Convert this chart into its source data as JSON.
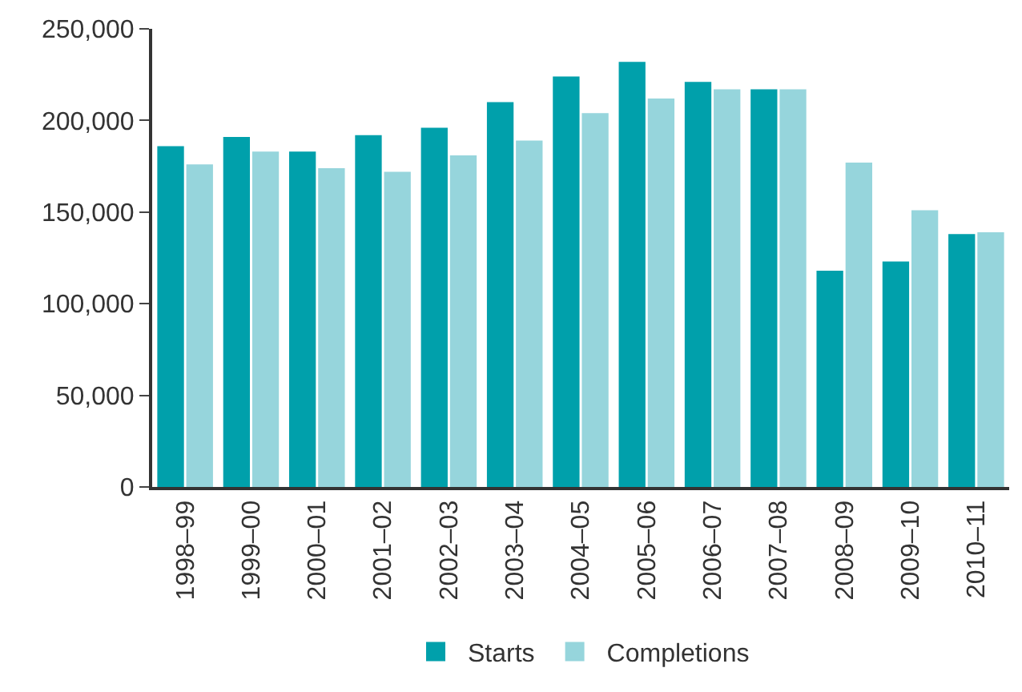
{
  "chart_data": {
    "type": "bar",
    "categories": [
      "1998–99",
      "1999–00",
      "2000–01",
      "2001–02",
      "2002–03",
      "2003–04",
      "2004–05",
      "2005–06",
      "2006–07",
      "2007–08",
      "2008–09",
      "2009–10",
      "2010–11"
    ],
    "series": [
      {
        "name": "Starts",
        "color": "#00a0ab",
        "values": [
          186000,
          191000,
          183000,
          192000,
          196000,
          210000,
          224000,
          232000,
          221000,
          217000,
          118000,
          123000,
          138000
        ]
      },
      {
        "name": "Completions",
        "color": "#96d5dc",
        "values": [
          176000,
          183000,
          174000,
          172000,
          181000,
          189000,
          204000,
          212000,
          217000,
          217000,
          177000,
          151000,
          139000
        ]
      }
    ],
    "ylim": [
      0,
      250000
    ],
    "yticks": [
      {
        "value": 0,
        "label": "0"
      },
      {
        "value": 50000,
        "label": "50,000"
      },
      {
        "value": 100000,
        "label": "100,000"
      },
      {
        "value": 150000,
        "label": "150,000"
      },
      {
        "value": 200000,
        "label": "200,000"
      },
      {
        "value": 250000,
        "label": "250,000"
      }
    ],
    "legend": "bottom"
  }
}
